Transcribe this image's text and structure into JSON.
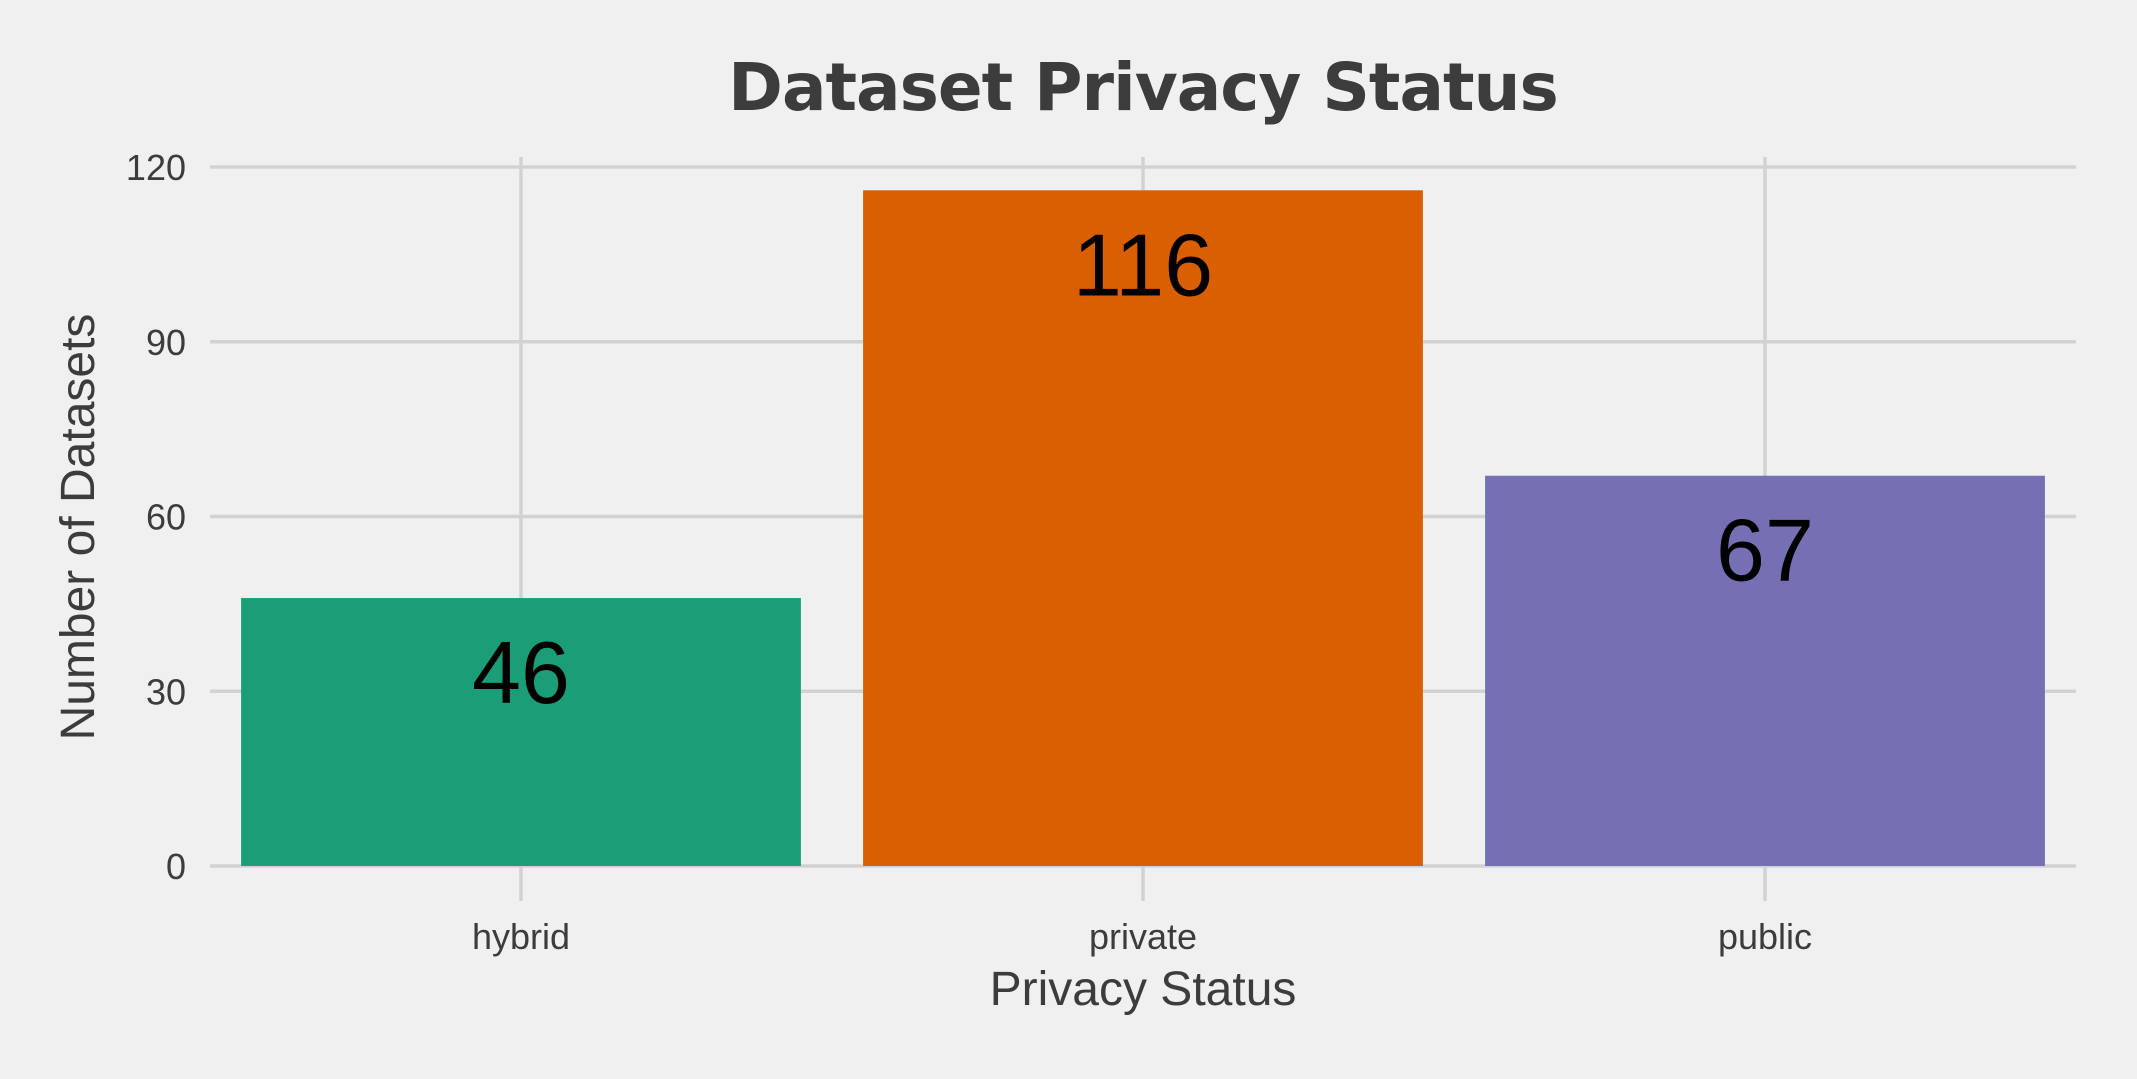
{
  "chart_data": {
    "type": "bar",
    "title": "Dataset Privacy Status",
    "xlabel": "Privacy Status",
    "ylabel": "Number of Datasets",
    "categories": [
      "hybrid",
      "private",
      "public"
    ],
    "values": [
      46,
      116,
      67
    ],
    "data_labels": [
      "46",
      "116",
      "67"
    ],
    "colors": [
      "#1b9e77",
      "#d95f02",
      "#7570b3"
    ],
    "ylim": [
      0,
      120
    ],
    "yticks": [
      0,
      30,
      60,
      90,
      120
    ],
    "ytick_labels": [
      "0",
      "30",
      "60",
      "90",
      "120"
    ],
    "grid": true,
    "legend": "none",
    "background": "#f0f0f0"
  }
}
